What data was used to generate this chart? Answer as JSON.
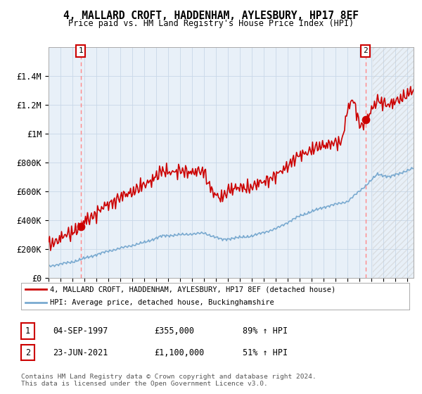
{
  "title": "4, MALLARD CROFT, HADDENHAM, AYLESBURY, HP17 8EF",
  "subtitle": "Price paid vs. HM Land Registry's House Price Index (HPI)",
  "ylim": [
    0,
    1600000
  ],
  "yticks": [
    0,
    200000,
    400000,
    600000,
    800000,
    1000000,
    1200000,
    1400000
  ],
  "ytick_labels": [
    "£0",
    "£200K",
    "£400K",
    "£600K",
    "£800K",
    "£1M",
    "£1.2M",
    "£1.4M"
  ],
  "xlim_start": 1995.0,
  "xlim_end": 2025.5,
  "sale1_x": 1997.68,
  "sale1_y": 355000,
  "sale2_x": 2021.48,
  "sale2_y": 1100000,
  "property_line_color": "#cc0000",
  "hpi_line_color": "#7aaad0",
  "plot_bg_color": "#e8f0f8",
  "dashed_line_color": "#ff8888",
  "legend_label1": "4, MALLARD CROFT, HADDENHAM, AYLESBURY, HP17 8EF (detached house)",
  "legend_label2": "HPI: Average price, detached house, Buckinghamshire",
  "table_row1": [
    "1",
    "04-SEP-1997",
    "£355,000",
    "89% ↑ HPI"
  ],
  "table_row2": [
    "2",
    "23-JUN-2021",
    "£1,100,000",
    "51% ↑ HPI"
  ],
  "footer": "Contains HM Land Registry data © Crown copyright and database right 2024.\nThis data is licensed under the Open Government Licence v3.0.",
  "background_color": "#ffffff",
  "grid_color": "#c8d8e8"
}
